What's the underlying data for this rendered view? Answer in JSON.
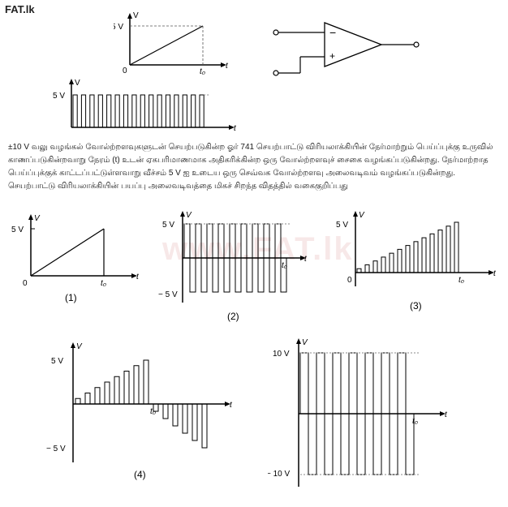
{
  "header": {
    "logo": "FAT.lk"
  },
  "watermark": "www.FAT.lk",
  "question": {
    "text": "±10 V வலு வழங்கல் வோல்ற்றளவுகளுடன் செயற்படுகின்ற ஓர் 741 செயற்பாட்டு விரியலாக்கியின் நேர்மாற்றும் பெய்ப்புக்கு உருவில் காணப்படுகின்றவாறு நேரம் (t) உடன் ஏகபரிமாணமாக அதிகரிக்கின்ற ஒரு வோல்ற்றளவுச் சைகை வழங்கப்படுகின்றது. நேர்மாற்றாத பெய்ப்புக்குக் காட்டப்பட்டுள்ளவாறு வீச்சம் 5 V ஐ உடைய ஒரு செவ்வக வோல்ற்றளவு அலைவடிவம் வழங்கப்படுகின்றது. செயற்பாட்டு விரியலாக்கியின் பயப்பு அலைவடிவத்தை மிகச் சிறந்த விதத்தில் வகைகுறிப்பது"
  },
  "charts": {
    "top_ramp": {
      "type": "ramp",
      "ylabel": "V",
      "xlabel": "t",
      "ymax_label": "5 V",
      "t0_label": "t₀",
      "origin_label": "0",
      "axis_color": "#000000",
      "line_color": "#000000",
      "dash_color": "#888888"
    },
    "top_square": {
      "type": "square_unipolar",
      "ylabel": "V",
      "xlabel": "t",
      "ymax_label": "5 V",
      "num_pulses": 16,
      "axis_color": "#000000",
      "line_color": "#000000"
    },
    "opamp": {
      "type": "opamp",
      "inv_label": "−",
      "noninv_label": "+",
      "line_color": "#000000"
    },
    "option1": {
      "type": "ramp",
      "label": "(1)",
      "ylabel": "V",
      "xlabel": "t",
      "ymax_label": "5 V",
      "t0_label": "t₀",
      "origin_label": "0"
    },
    "option2": {
      "type": "square_bipolar",
      "label": "(2)",
      "ylabel": "V",
      "xlabel": "t",
      "ypos_label": "5 V",
      "yneg_label": "− 5 V",
      "t0_label": "t₀",
      "num_pulses": 9
    },
    "option3": {
      "type": "bars_growing",
      "label": "(3)",
      "ylabel": "V",
      "xlabel": "t",
      "ymax_label": "5 V",
      "t0_label": "t₀",
      "origin_label": "0",
      "num_bars": 13
    },
    "option4": {
      "type": "bars_bipolar_growing",
      "label": "(4)",
      "ylabel": "V",
      "xlabel": "t",
      "ypos_label": "5 V",
      "yneg_label": "− 5 V",
      "t0_label": "t₀",
      "num_pos": 8,
      "num_neg": 6
    },
    "option5": {
      "type": "square_bipolar_tall",
      "label": "",
      "ylabel": "V",
      "xlabel": "t",
      "ypos_label": "10 V",
      "yneg_label": "− 10 V",
      "t0_label": "t₀",
      "num_pulses": 7
    }
  }
}
